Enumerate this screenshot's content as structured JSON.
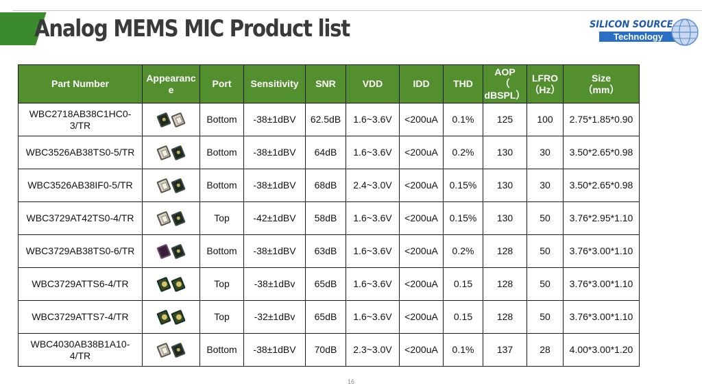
{
  "title": "Analog MEMS MIC Product list",
  "logo": {
    "line1": "SILICON SOURCE",
    "line2": "Technology"
  },
  "columns": [
    "Part Number",
    "Appearance",
    "Port",
    "Sensitivity",
    "SNR",
    "VDD",
    "IDD",
    "THD",
    "AOP\n（\ndBSPL）",
    "LFRO\n（Hz）",
    "Size\n（mm）"
  ],
  "rows": [
    [
      "WBC2718AB38C1HC0-3/TR",
      "",
      "Bottom",
      "-38±1dBV",
      "62.5dB",
      "1.6~3.6V",
      "<200uA",
      "0.1%",
      "125",
      "100",
      "2.75*1.85*0.90"
    ],
    [
      "WBC3526AB38TS0-5/TR",
      "",
      "Bottom",
      "-38±1dBV",
      "64dB",
      "1.6~3.6V",
      "<200uA",
      "0.2%",
      "130",
      "30",
      "3.50*2.65*0.98"
    ],
    [
      "WBC3526AB38IF0-5/TR",
      "",
      "Bottom",
      "-38±1dBV",
      "68dB",
      "2.4~3.0V",
      "<200uA",
      "0.15%",
      "130",
      "30",
      "3.50*2.65*0.98"
    ],
    [
      "WBC3729AT42TS0-4/TR",
      "",
      "Top",
      "-42±1dBV",
      "58dB",
      "1.6~3.6V",
      "<200uA",
      "0.15%",
      "130",
      "50",
      "3.76*2.95*1.10"
    ],
    [
      "WBC3729AB38TS0-6/TR",
      "",
      "Bottom",
      "-38±1dBV",
      "63dB",
      "1.6~3.6V",
      "<200uA",
      "0.2%",
      "128",
      "50",
      "3.76*3.00*1.10"
    ],
    [
      "WBC3729ATTS6-4/TR",
      "",
      "Top",
      "-38±1dBv",
      "65dB",
      "1.6~3.6V",
      "<200uA",
      "0.15",
      "128",
      "50",
      "3.76*3.00*1.10"
    ],
    [
      "WBC3729ATTS7-4/TR",
      "",
      "Top",
      "-32±1dBv",
      "65dB",
      "1.6~3.6V",
      "<200uA",
      "0.15",
      "128",
      "50",
      "3.76*3.00*1.10"
    ],
    [
      "WBC4030AB38B1A10-4/TR",
      "",
      "Bottom",
      "-38±1dBV",
      "70dB",
      "2.3~3.0V",
      "<200uA",
      "0.1%",
      "137",
      "28",
      "4.00*3.00*1.20"
    ]
  ],
  "page_number": "16",
  "colors": {
    "header_green": "#548f2f",
    "title_text": "#3a3a3a",
    "logo_blue": "#1d5aa8"
  }
}
